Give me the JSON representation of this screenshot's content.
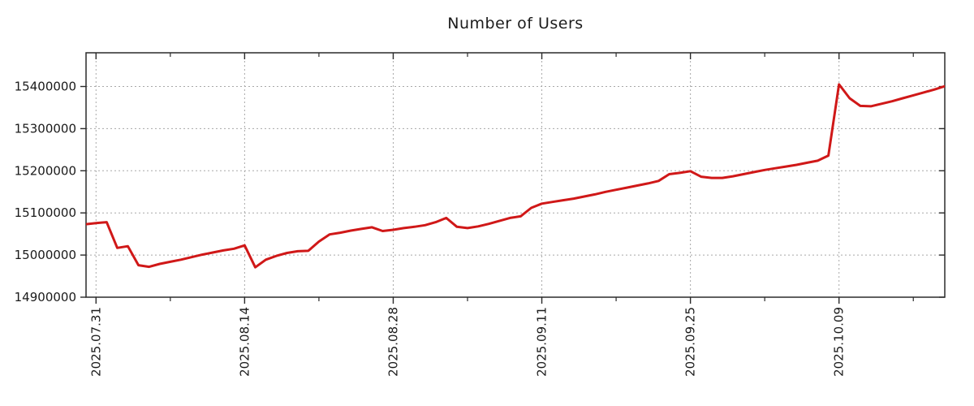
{
  "chart_data": {
    "type": "line",
    "title": "Number of Users",
    "xlabel": "",
    "ylabel": "",
    "legend": "none",
    "grid": "dotted",
    "series_color": "#d01818",
    "axis_color": "#2a2a2a",
    "grid_color": "#a8a8a8",
    "tick_label_color": "#1a1a1a",
    "ylim": [
      14900000,
      15480000
    ],
    "y_ticks": [
      14900000,
      15000000,
      15100000,
      15200000,
      15300000,
      15400000
    ],
    "y_tick_labels": [
      "14900000",
      "15000000",
      "15100000",
      "15200000",
      "15300000",
      "15400000"
    ],
    "x_tick_labels": [
      "2025.07.31",
      "2025.08.14",
      "2025.08.28",
      "2025.09.11",
      "2025.09.25",
      "2025.10.09"
    ],
    "x_minor_ticks": [
      "2025.08.07",
      "2025.08.21",
      "2025.09.04",
      "2025.09.18",
      "2025.10.02",
      "2025.10.16"
    ],
    "x": [
      "2025.07.30",
      "2025.07.31",
      "2025.08.01",
      "2025.08.02",
      "2025.08.03",
      "2025.08.04",
      "2025.08.05",
      "2025.08.06",
      "2025.08.07",
      "2025.08.08",
      "2025.08.09",
      "2025.08.10",
      "2025.08.11",
      "2025.08.12",
      "2025.08.13",
      "2025.08.14",
      "2025.08.15",
      "2025.08.16",
      "2025.08.17",
      "2025.08.18",
      "2025.08.19",
      "2025.08.20",
      "2025.08.21",
      "2025.08.22",
      "2025.08.23",
      "2025.08.24",
      "2025.08.25",
      "2025.08.26",
      "2025.08.27",
      "2025.08.28",
      "2025.08.29",
      "2025.08.30",
      "2025.08.31",
      "2025.09.01",
      "2025.09.02",
      "2025.09.03",
      "2025.09.04",
      "2025.09.05",
      "2025.09.06",
      "2025.09.07",
      "2025.09.08",
      "2025.09.09",
      "2025.09.10",
      "2025.09.11",
      "2025.09.12",
      "2025.09.13",
      "2025.09.14",
      "2025.09.15",
      "2025.09.16",
      "2025.09.17",
      "2025.09.18",
      "2025.09.19",
      "2025.09.20",
      "2025.09.21",
      "2025.09.22",
      "2025.09.23",
      "2025.09.24",
      "2025.09.25",
      "2025.09.26",
      "2025.09.27",
      "2025.09.28",
      "2025.09.29",
      "2025.09.30",
      "2025.10.01",
      "2025.10.02",
      "2025.10.03",
      "2025.10.04",
      "2025.10.05",
      "2025.10.06",
      "2025.10.07",
      "2025.10.08",
      "2025.10.09",
      "2025.10.10",
      "2025.10.11",
      "2025.10.12",
      "2025.10.13",
      "2025.10.14",
      "2025.10.15",
      "2025.10.16",
      "2025.10.17",
      "2025.10.18",
      "2025.10.19"
    ],
    "values": [
      15073000,
      15076000,
      15078000,
      15017000,
      15021000,
      14976000,
      14972000,
      14979000,
      14984000,
      14989000,
      14995000,
      15001000,
      15006000,
      15011000,
      15015000,
      15023000,
      14971000,
      14989000,
      14998000,
      15005000,
      15009000,
      15010000,
      15032000,
      15049000,
      15053000,
      15058000,
      15062000,
      15066000,
      15057000,
      15060000,
      15064000,
      15067000,
      15071000,
      15078000,
      15088000,
      15067000,
      15064000,
      15068000,
      15074000,
      15081000,
      15088000,
      15092000,
      15112000,
      15122000,
      15126000,
      15130000,
      15134000,
      15139000,
      15144000,
      15150000,
      15155000,
      15160000,
      15165000,
      15170000,
      15176000,
      15192000,
      15195000,
      15199000,
      15186000,
      15183000,
      15183000,
      15187000,
      15192000,
      15197000,
      15202000,
      15206000,
      15210000,
      15214000,
      15219000,
      15224000,
      15236000,
      15405000,
      15372000,
      15354000,
      15353000,
      15359000,
      15365000,
      15372000,
      15379000,
      15386000,
      15393000,
      15401000
    ]
  }
}
